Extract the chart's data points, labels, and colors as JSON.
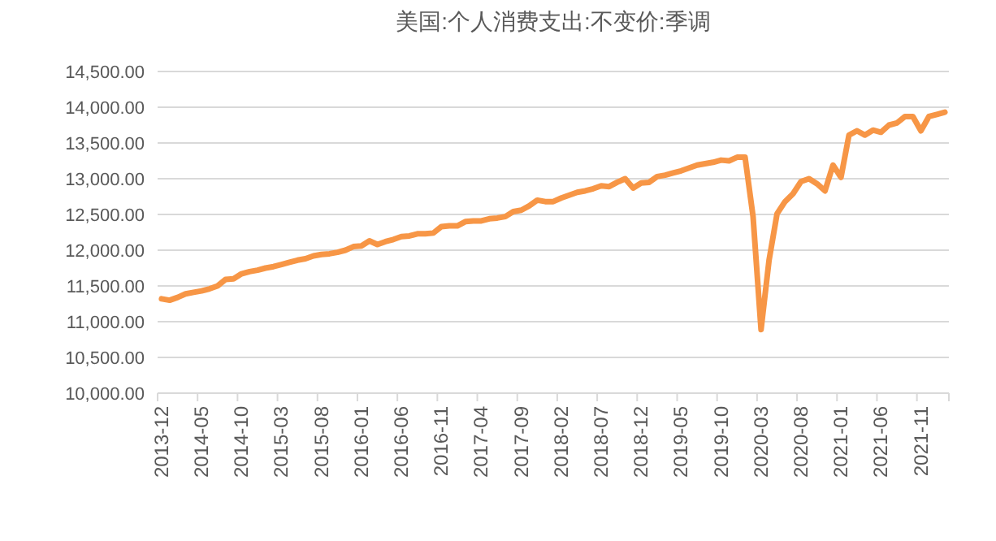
{
  "chart_data": {
    "type": "line",
    "title": "美国:个人消费支出:不变价:季调",
    "categories": [
      "2013-12",
      null,
      null,
      null,
      null,
      "2014-05",
      null,
      null,
      null,
      null,
      "2014-10",
      null,
      null,
      null,
      null,
      "2015-03",
      null,
      null,
      null,
      null,
      "2015-08",
      null,
      null,
      null,
      null,
      "2016-01",
      null,
      null,
      null,
      null,
      "2016-06",
      null,
      null,
      null,
      null,
      "2016-11",
      null,
      null,
      null,
      null,
      "2017-04",
      null,
      null,
      null,
      null,
      "2017-09",
      null,
      null,
      null,
      null,
      "2018-02",
      null,
      null,
      null,
      null,
      "2018-07",
      null,
      null,
      null,
      null,
      "2018-12",
      null,
      null,
      null,
      null,
      "2019-05",
      null,
      null,
      null,
      null,
      "2019-10",
      null,
      null,
      null,
      null,
      "2020-03",
      null,
      null,
      null,
      null,
      "2020-08",
      null,
      null,
      null,
      null,
      "2021-01",
      null,
      null,
      null,
      null,
      "2021-06",
      null,
      null,
      null,
      null,
      "2021-11",
      null,
      null,
      null
    ],
    "series": [
      {
        "color": "#f79646",
        "values": [
          11320,
          11300,
          11340,
          11390,
          11410,
          11430,
          11460,
          11500,
          11590,
          11600,
          11670,
          11700,
          11720,
          11750,
          11770,
          11800,
          11830,
          11860,
          11880,
          11920,
          11940,
          11950,
          11970,
          12000,
          12050,
          12060,
          12130,
          12080,
          12120,
          12150,
          12190,
          12200,
          12230,
          12230,
          12240,
          12330,
          12340,
          12340,
          12400,
          12410,
          12410,
          12440,
          12450,
          12470,
          12540,
          12560,
          12620,
          12700,
          12680,
          12680,
          12730,
          12770,
          12810,
          12830,
          12860,
          12900,
          12890,
          12950,
          13000,
          12870,
          12940,
          12950,
          13030,
          13050,
          13080,
          13110,
          13150,
          13190,
          13210,
          13230,
          13260,
          13250,
          13300,
          13300,
          12470,
          10890,
          11860,
          12510,
          12680,
          12790,
          12960,
          13000,
          12930,
          12830,
          13190,
          13020,
          13610,
          13670,
          13610,
          13680,
          13650,
          13750,
          13780,
          13870,
          13870,
          13670,
          13870,
          13900,
          13930
        ]
      }
    ],
    "ylim": [
      10000,
      14500
    ],
    "yticks": [
      {
        "value": 10000,
        "label": "10,000.00"
      },
      {
        "value": 10500,
        "label": "10,500.00"
      },
      {
        "value": 11000,
        "label": "11,000.00"
      },
      {
        "value": 11500,
        "label": "11,500.00"
      },
      {
        "value": 12000,
        "label": "12,000.00"
      },
      {
        "value": 12500,
        "label": "12,500.00"
      },
      {
        "value": 13000,
        "label": "13,000.00"
      },
      {
        "value": 13500,
        "label": "13,500.00"
      },
      {
        "value": 14000,
        "label": "14,000.00"
      },
      {
        "value": 14500,
        "label": "14,500.00"
      }
    ],
    "grid": "y",
    "line_style": "solid",
    "marker": "none"
  }
}
